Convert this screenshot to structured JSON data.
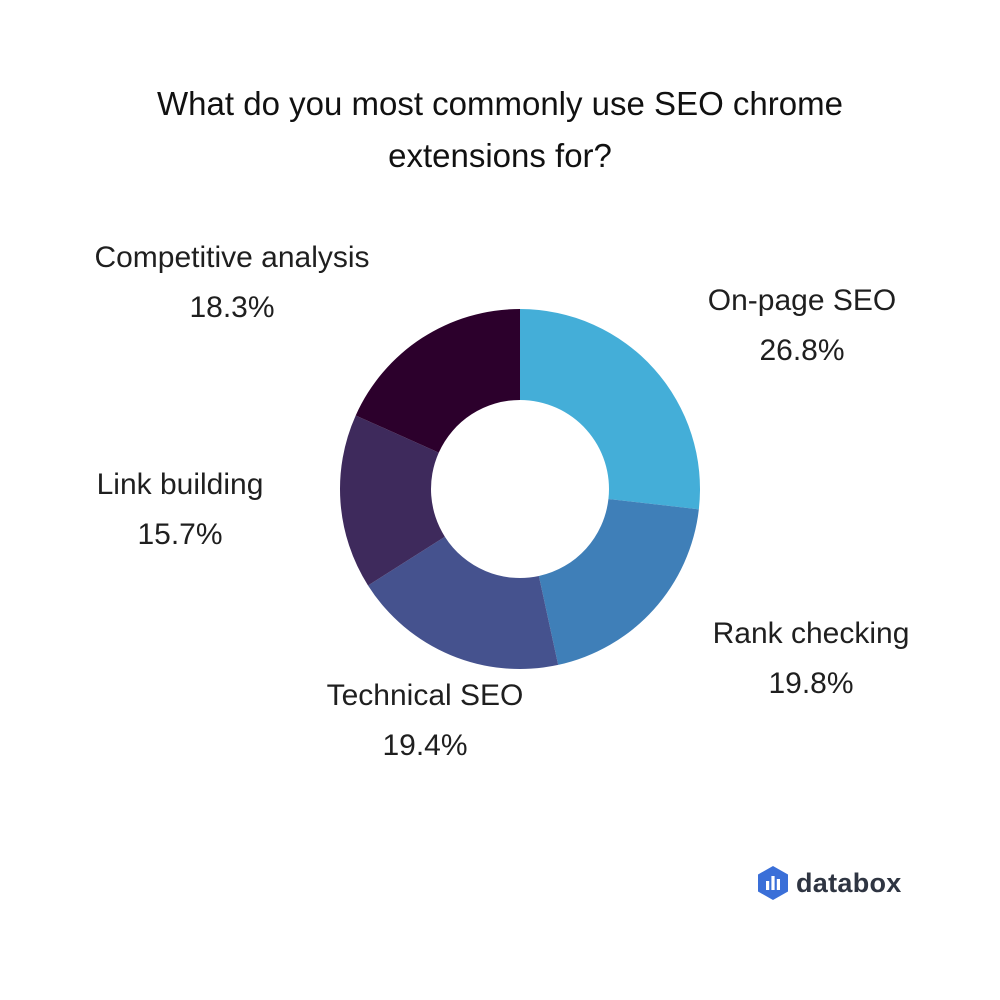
{
  "chart_data": {
    "type": "pie",
    "donut": true,
    "title_lines": [
      "What do you most commonly use SEO chrome",
      "extensions for?"
    ],
    "slices": [
      {
        "label": "On-page SEO",
        "value": 26.8,
        "value_label": "26.8%",
        "color": "#44aed8"
      },
      {
        "label": "Rank checking",
        "value": 19.8,
        "value_label": "19.8%",
        "color": "#3f7fb8"
      },
      {
        "label": "Technical SEO",
        "value": 19.4,
        "value_label": "19.4%",
        "color": "#45528e"
      },
      {
        "label": "Link building",
        "value": 15.7,
        "value_label": "15.7%",
        "color": "#3e2a5c"
      },
      {
        "label": "Competitive analysis",
        "value": 18.3,
        "value_label": "18.3%",
        "color": "#2c002c"
      }
    ],
    "start_angle_deg": 0,
    "direction": "clockwise",
    "legend": "none"
  },
  "brand": {
    "name": "databox",
    "icon": "databox-logo-icon",
    "color": "#3a6fd8"
  }
}
